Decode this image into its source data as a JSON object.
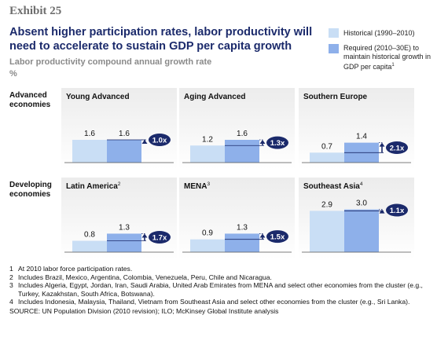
{
  "exhibit": "Exhibit 25",
  "title": "Absent higher participation rates, labor productivity will need to accelerate to sustain GDP per capita growth",
  "subtitle": "Labor productivity compound annual growth rate",
  "unit": "%",
  "legend": [
    {
      "name": "Historical (1990–2010)",
      "color": "#c9def5"
    },
    {
      "name": "Required (2010–30E) to maintain historical growth in GDP per capita",
      "note": "1",
      "color": "#8eb0ea"
    }
  ],
  "row_labels": [
    "Advanced economies",
    "Developing economies"
  ],
  "chart_data": [
    {
      "type": "bar",
      "title": "Young Advanced",
      "values": [
        1.6,
        1.6
      ],
      "value_labels": [
        "1.6",
        "1.6"
      ],
      "annotation": "1.0x",
      "ylim": [
        0,
        3.2
      ]
    },
    {
      "type": "bar",
      "title": "Aging Advanced",
      "values": [
        1.2,
        1.6
      ],
      "value_labels": [
        "1.2",
        "1.6"
      ],
      "annotation": "1.3x",
      "ylim": [
        0,
        3.2
      ]
    },
    {
      "type": "bar",
      "title": "Southern Europe",
      "values": [
        0.7,
        1.4
      ],
      "value_labels": [
        "0.7",
        "1.4"
      ],
      "annotation": "2.1x",
      "ylim": [
        0,
        3.2
      ]
    },
    {
      "type": "bar",
      "title": "Latin America",
      "title_note": "2",
      "values": [
        0.8,
        1.3
      ],
      "value_labels": [
        "0.8",
        "1.3"
      ],
      "annotation": "1.7x",
      "ylim": [
        0,
        3.2
      ]
    },
    {
      "type": "bar",
      "title": "MENA",
      "title_note": "3",
      "values": [
        0.9,
        1.3
      ],
      "value_labels": [
        "0.9",
        "1.3"
      ],
      "annotation": "1.5x",
      "ylim": [
        0,
        3.2
      ]
    },
    {
      "type": "bar",
      "title": "Southeast Asia",
      "title_note": "4",
      "values": [
        2.9,
        3.0
      ],
      "value_labels": [
        "2.9",
        "3.0"
      ],
      "annotation": "1.1x",
      "ylim": [
        0,
        3.2
      ]
    }
  ],
  "footnotes": [
    {
      "number": "1",
      "text": "At 2010 labor force participation rates."
    },
    {
      "number": "2",
      "text": "Includes Brazil, Mexico, Argentina, Colombia, Venezuela, Peru, Chile and Nicaragua."
    },
    {
      "number": "3",
      "text": "Includes Algeria, Egypt, Jordan, Iran, Saudi Arabia, United Arab Emirates from MENA and select other economies from the cluster (e.g., Turkey, Kazakhstan, South Africa, Botswana)."
    },
    {
      "number": "4",
      "text": "Includes Indonesia, Malaysia, Thailand, Vietnam from Southeast Asia and select other economies from the cluster (e.g., Sri Lanka)."
    }
  ],
  "source": "SOURCE: UN Population Division (2010 revision); ILO; McKinsey Global Institute analysis"
}
